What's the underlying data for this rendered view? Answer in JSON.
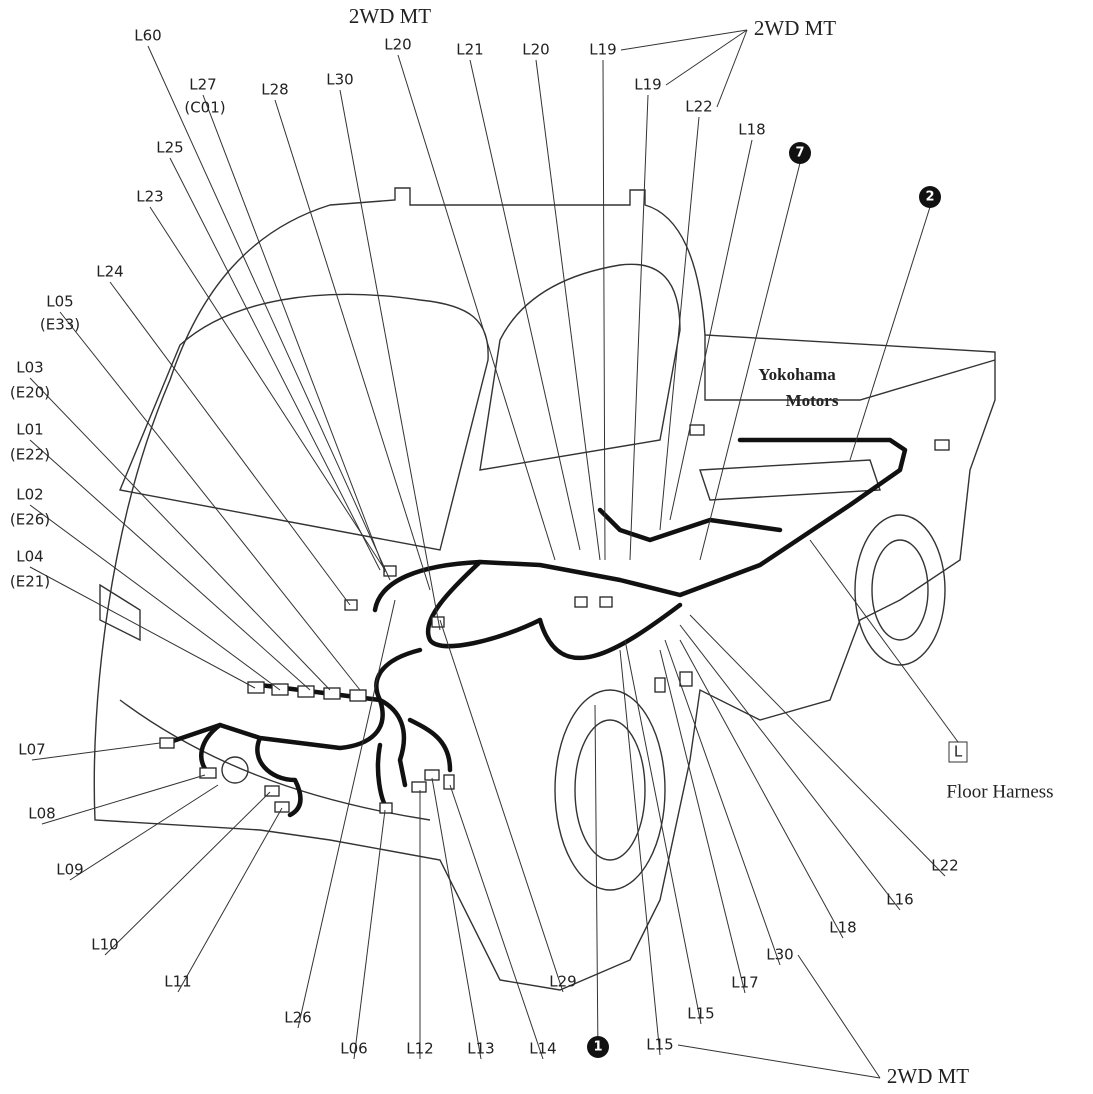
{
  "labels": [
    "2WD MT",
    "L60",
    "L20",
    "L21",
    "L20",
    "L19",
    "2WD MT",
    "L19",
    "L22",
    "L27",
    "(C01)",
    "L28",
    "L30",
    "L25",
    "L18",
    "7",
    "L23",
    "2",
    "L24",
    "L05",
    "(E33)",
    "L03",
    "(E20)",
    "L01",
    "(E22)",
    "L02",
    "(E26)",
    "L04",
    "(E21)",
    "Yokohama",
    "Motors",
    "L07",
    "L08",
    "L09",
    "L10",
    "L11",
    "L26",
    "L06",
    "L12",
    "L13",
    "L14",
    "1",
    "L15",
    "L15",
    "L17",
    "L29",
    "L30",
    "L18",
    "L16",
    "L22",
    "L",
    "Floor Harness",
    "2WD MT"
  ]
}
